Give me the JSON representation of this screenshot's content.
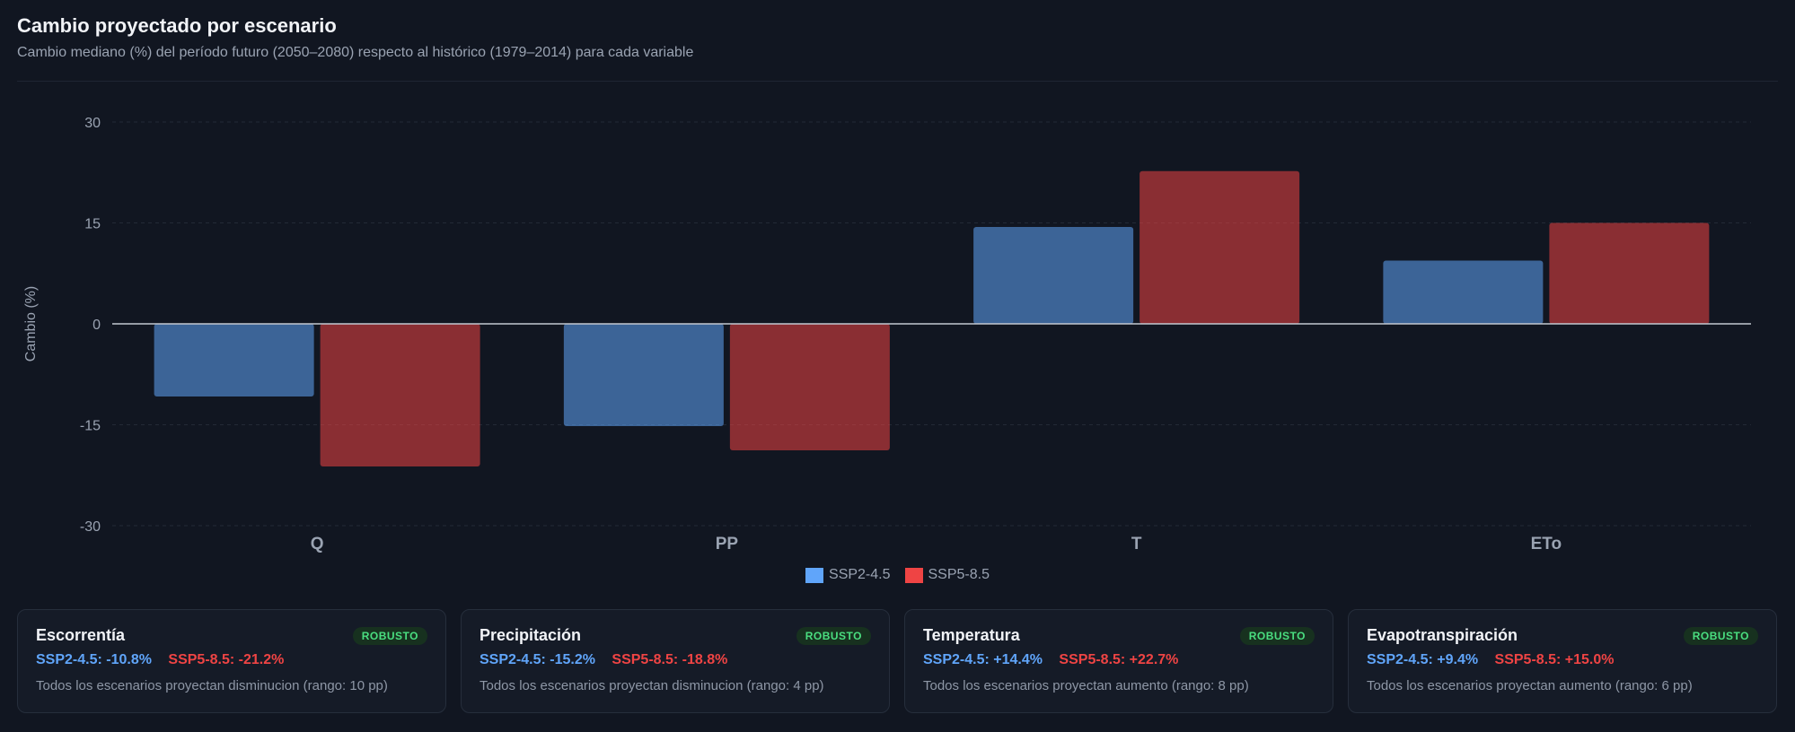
{
  "header": {
    "title": "Cambio proyectado por escenario",
    "subtitle": "Cambio mediano (%) del período futuro (2050–2080) respecto al histórico (1979–2014) para cada variable"
  },
  "chart_data": {
    "type": "bar",
    "categories": [
      "Q",
      "PP",
      "T",
      "ETo"
    ],
    "series": [
      {
        "name": "SSP2-4.5",
        "values": [
          -10.8,
          -15.2,
          14.4,
          9.4
        ],
        "color": "#60a5fa"
      },
      {
        "name": "SSP5-8.5",
        "values": [
          -21.2,
          -18.8,
          22.7,
          15.0
        ],
        "color": "#ef4444"
      }
    ],
    "ylabel": "Cambio (%)",
    "xlabel": "",
    "ylim": [
      -30,
      30
    ],
    "yticks": [
      30,
      15,
      0,
      -15,
      -30
    ],
    "grid": true,
    "legend_position": "bottom-center"
  },
  "legend": [
    {
      "label": "SSP2-4.5",
      "color": "#60a5fa"
    },
    {
      "label": "SSP5-8.5",
      "color": "#ef4444"
    }
  ],
  "cards": [
    {
      "title": "Escorrentía",
      "badge": "ROBUSTO",
      "ssp245": "SSP2-4.5: -10.8%",
      "ssp585": "SSP5-8.5: -21.2%",
      "note": "Todos los escenarios proyectan disminucion (rango: 10 pp)"
    },
    {
      "title": "Precipitación",
      "badge": "ROBUSTO",
      "ssp245": "SSP2-4.5: -15.2%",
      "ssp585": "SSP5-8.5: -18.8%",
      "note": "Todos los escenarios proyectan disminucion (rango: 4 pp)"
    },
    {
      "title": "Temperatura",
      "badge": "ROBUSTO",
      "ssp245": "SSP2-4.5: +14.4%",
      "ssp585": "SSP5-8.5: +22.7%",
      "note": "Todos los escenarios proyectan aumento (rango: 8 pp)"
    },
    {
      "title": "Evapotranspiración",
      "badge": "ROBUSTO",
      "ssp245": "SSP2-4.5: +9.4%",
      "ssp585": "SSP5-8.5: +15.0%",
      "note": "Todos los escenarios proyectan aumento (rango: 6 pp)"
    }
  ]
}
